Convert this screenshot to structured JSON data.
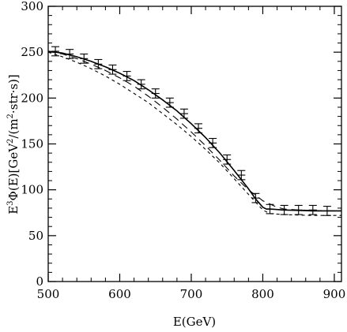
{
  "chart_data": {
    "type": "line",
    "title": "",
    "xlabel": "E(GeV)",
    "ylabel": {
      "prefix": "E",
      "prefix_sup": "3",
      "middle": "Φ(E)[GeV",
      "middle_sup": "2",
      "middle2": "/(m",
      "middle2_sup": "2",
      "suffix": "·str·s)]"
    },
    "xlim": [
      500,
      910
    ],
    "ylim": [
      0,
      300
    ],
    "xticks": [
      500,
      600,
      700,
      800,
      900
    ],
    "yticks": [
      0,
      50,
      100,
      150,
      200,
      250,
      300
    ],
    "x_minor_step": 20,
    "y_minor_step": 10,
    "grid": false,
    "legend": "none",
    "series": [
      {
        "style": "solid",
        "x": [
          500,
          520,
          540,
          560,
          580,
          600,
          620,
          640,
          660,
          680,
          700,
          720,
          740,
          760,
          780,
          790,
          800,
          805,
          810,
          830,
          850,
          870,
          890,
          910
        ],
        "y": [
          251,
          249,
          245,
          240,
          234,
          227,
          219,
          209,
          198,
          186,
          172,
          157,
          140,
          121,
          101,
          90,
          81,
          79,
          79,
          78,
          77.5,
          77,
          77,
          77
        ]
      },
      {
        "style": "long-dash",
        "x": [
          500,
          520,
          540,
          560,
          580,
          600,
          620,
          640,
          660,
          680,
          700,
          720,
          740,
          760,
          780,
          800,
          820,
          830,
          850,
          870,
          890,
          910
        ],
        "y": [
          251,
          248,
          243,
          237,
          230,
          222,
          213,
          202,
          190,
          177,
          163,
          148,
          132,
          115,
          100,
          88,
          81,
          79,
          78,
          77.5,
          77,
          77
        ]
      },
      {
        "style": "short-dash",
        "x": [
          500,
          520,
          540,
          560,
          580,
          600,
          620,
          640,
          660,
          680,
          700,
          720,
          740,
          760,
          780,
          800,
          810,
          830,
          850,
          870,
          890,
          910
        ],
        "y": [
          250,
          245,
          239,
          232,
          224,
          215,
          205,
          195,
          183,
          171,
          158,
          144,
          129,
          112,
          95,
          78,
          74,
          73,
          72.5,
          72,
          72,
          72
        ]
      }
    ],
    "data_points": {
      "x": [
        510,
        530,
        550,
        570,
        590,
        610,
        630,
        650,
        670,
        690,
        710,
        730,
        750,
        770,
        790,
        810,
        830,
        850,
        870,
        890
      ],
      "y": [
        251,
        248,
        243,
        237,
        231,
        224,
        215,
        205,
        195,
        183,
        167,
        151,
        133,
        116,
        91,
        79,
        78,
        78,
        78,
        77
      ],
      "err": [
        5,
        5,
        5,
        5,
        5,
        5,
        5,
        5,
        5,
        5,
        5,
        5,
        5,
        5,
        5,
        5,
        5,
        5,
        5,
        5
      ]
    }
  }
}
